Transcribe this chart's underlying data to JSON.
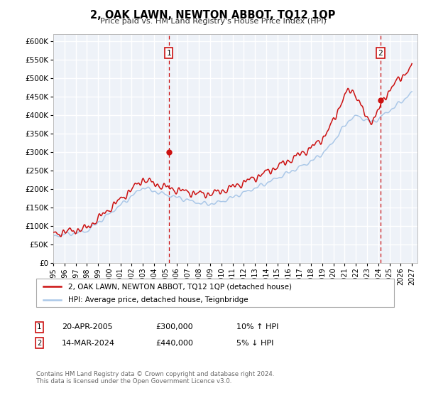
{
  "title": "2, OAK LAWN, NEWTON ABBOT, TQ12 1QP",
  "subtitle": "Price paid vs. HM Land Registry's House Price Index (HPI)",
  "ylim": [
    0,
    620000
  ],
  "xlim_start": 1995.0,
  "xlim_end": 2027.5,
  "ytick_values": [
    0,
    50000,
    100000,
    150000,
    200000,
    250000,
    300000,
    350000,
    400000,
    450000,
    500000,
    550000,
    600000
  ],
  "ytick_labels": [
    "£0",
    "£50K",
    "£100K",
    "£150K",
    "£200K",
    "£250K",
    "£300K",
    "£350K",
    "£400K",
    "£450K",
    "£500K",
    "£550K",
    "£600K"
  ],
  "xtick_years": [
    1995,
    1996,
    1997,
    1998,
    1999,
    2000,
    2001,
    2002,
    2003,
    2004,
    2005,
    2006,
    2007,
    2008,
    2009,
    2010,
    2011,
    2012,
    2013,
    2014,
    2015,
    2016,
    2017,
    2018,
    2019,
    2020,
    2021,
    2022,
    2023,
    2024,
    2025,
    2026,
    2027
  ],
  "hpi_color": "#abc8e8",
  "price_color": "#cc1111",
  "sale1_date": 2005.3,
  "sale1_price": 300000,
  "sale2_date": 2024.2,
  "sale2_price": 440000,
  "vline_color": "#cc1111",
  "dot_color": "#cc1111",
  "marker_box_color": "#cc1111",
  "legend_line1": "2, OAK LAWN, NEWTON ABBOT, TQ12 1QP (detached house)",
  "legend_line2": "HPI: Average price, detached house, Teignbridge",
  "annotation1_label": "1",
  "annotation1_text": "20-APR-2005",
  "annotation1_price": "£300,000",
  "annotation1_hpi": "10% ↑ HPI",
  "annotation2_label": "2",
  "annotation2_text": "14-MAR-2024",
  "annotation2_price": "£440,000",
  "annotation2_hpi": "5% ↓ HPI",
  "footer": "Contains HM Land Registry data © Crown copyright and database right 2024.\nThis data is licensed under the Open Government Licence v3.0.",
  "plot_bg_color": "#eef2f8",
  "grid_color": "#ffffff"
}
